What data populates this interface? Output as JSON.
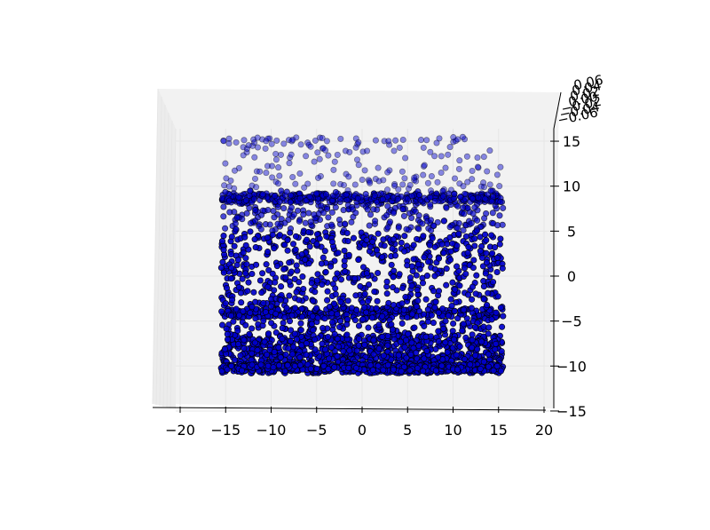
{
  "chart_data": {
    "type": "scatter",
    "projection": "3d",
    "title": "",
    "xlabel": "",
    "ylabel": "",
    "zlabel": "",
    "xlim": [
      -20,
      20
    ],
    "ylim": [
      -15,
      15
    ],
    "zlim": [
      -0.06,
      0.06
    ],
    "x_ticks": [
      "−20",
      "−15",
      "−10",
      "−5",
      "0",
      "5",
      "10",
      "15",
      "20"
    ],
    "y_ticks": [
      "15",
      "10",
      "5",
      "0",
      "−5",
      "−10",
      "−15"
    ],
    "z_ticks": [
      "0.06",
      "0.04",
      "0.02",
      "0.00",
      "−0.02",
      "−0.04",
      "−0.06"
    ],
    "grid": true,
    "marker_color": "#0000cc",
    "marker_edge_color": "#000000",
    "series": [
      {
        "x_range": [
          -15.5,
          15.5
        ],
        "bands": [
          {
            "y_range": [
              -10.8,
              -6.5
            ],
            "count": 1000
          },
          {
            "y_range": [
              -10.6,
              -9.8
            ],
            "count": 350
          },
          {
            "y_range": [
              -4.6,
              -3.6
            ],
            "count": 250
          },
          {
            "y_range": [
              -6.5,
              8.5
            ],
            "count": 1050
          },
          {
            "y_range": [
              8.2,
              9.2
            ],
            "count": 320
          },
          {
            "y_range": [
              8.5,
              15.5
            ],
            "count": 220
          }
        ],
        "z": 0.0
      }
    ]
  },
  "colors": {
    "pane": "#f2f2f2",
    "grid": "#e6e6e6",
    "axis_line": "#000000"
  }
}
